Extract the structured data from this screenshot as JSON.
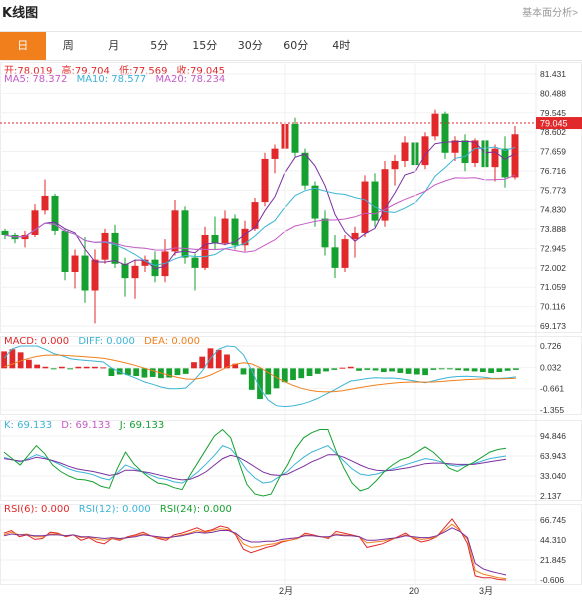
{
  "header": {
    "title": "K线图",
    "analysis_link": "基本面分析>"
  },
  "tabs": [
    {
      "label": "日",
      "active": true
    },
    {
      "label": "周",
      "active": false
    },
    {
      "label": "月",
      "active": false
    },
    {
      "label": "5分",
      "active": false
    },
    {
      "label": "15分",
      "active": false
    },
    {
      "label": "30分",
      "active": false
    },
    {
      "label": "60分",
      "active": false
    },
    {
      "label": "4时",
      "active": false
    }
  ],
  "colors": {
    "up": "#e1282a",
    "down": "#16a02f",
    "accent": "#f07f1c",
    "ma5": "#7b2fa0",
    "ma10": "#3bb3d6",
    "ma20": "#c55ac7"
  },
  "kline_legend": {
    "open": "开:78.019",
    "high": "高:79.704",
    "low": "低:77.569",
    "close": "收:79.045",
    "ma5": "MA5: 78.372",
    "ma10": "MA10: 78.577",
    "ma20": "MA20: 78.234"
  },
  "macd_legend": {
    "macd": "MACD: 0.000",
    "diff": "DIFF: 0.000",
    "dea": "DEA: 0.000"
  },
  "kdj_legend": {
    "k": "K: 69.133",
    "d": "D: 69.133",
    "j": "J: 69.133"
  },
  "rsi_legend": {
    "rsi6": "RSI(6): 0.000",
    "rsi12": "RSI(12): 0.000",
    "rsi24": "RSI(24): 0.000"
  },
  "chart_data": [
    {
      "type": "candlestick",
      "title": "",
      "ylim": [
        69.173,
        81.431
      ],
      "yticks": [
        "81.431",
        "80.488",
        "79.545",
        "78.602",
        "77.659",
        "76.716",
        "75.773",
        "74.830",
        "73.888",
        "72.945",
        "72.002",
        "71.059",
        "70.116",
        "69.173"
      ],
      "current_price_label": "79.045",
      "current_price": 79.045,
      "x_labels": [
        {
          "label": "2月",
          "index": 28
        },
        {
          "label": "20",
          "index": 41
        },
        {
          "label": "3月",
          "index": 48
        }
      ],
      "candles": [
        [
          73.8,
          73.9,
          73.4,
          73.6
        ],
        [
          73.6,
          73.7,
          73.2,
          73.4
        ],
        [
          73.4,
          73.8,
          73.0,
          73.6
        ],
        [
          73.6,
          75.1,
          73.5,
          74.8
        ],
        [
          74.8,
          76.3,
          74.6,
          75.5
        ],
        [
          75.5,
          75.6,
          73.6,
          73.8
        ],
        [
          73.8,
          73.9,
          71.4,
          71.8
        ],
        [
          71.8,
          72.9,
          71.0,
          72.6
        ],
        [
          72.6,
          73.5,
          70.3,
          70.9
        ],
        [
          70.9,
          72.9,
          69.3,
          72.4
        ],
        [
          72.4,
          73.9,
          72.2,
          73.7
        ],
        [
          73.7,
          74.1,
          72.0,
          72.2
        ],
        [
          72.2,
          72.5,
          70.6,
          71.5
        ],
        [
          71.5,
          72.4,
          70.5,
          72.1
        ],
        [
          72.1,
          72.6,
          71.8,
          72.4
        ],
        [
          72.4,
          72.8,
          71.3,
          71.6
        ],
        [
          71.6,
          73.4,
          71.3,
          72.8
        ],
        [
          72.8,
          75.3,
          72.6,
          74.8
        ],
        [
          74.8,
          75.0,
          72.2,
          72.5
        ],
        [
          72.5,
          72.7,
          70.9,
          72.0
        ],
        [
          72.0,
          74.0,
          71.9,
          73.6
        ],
        [
          73.6,
          74.5,
          72.9,
          73.2
        ],
        [
          73.2,
          74.8,
          73.1,
          74.4
        ],
        [
          74.4,
          74.6,
          72.9,
          73.1
        ],
        [
          73.1,
          74.3,
          72.8,
          73.9
        ],
        [
          73.9,
          75.4,
          73.8,
          75.2
        ],
        [
          75.2,
          77.6,
          75.0,
          77.3
        ],
        [
          77.3,
          78.0,
          76.6,
          77.8
        ],
        [
          77.8,
          79.2,
          77.5,
          79.0
        ],
        [
          79.0,
          79.3,
          77.4,
          77.6
        ],
        [
          77.6,
          77.8,
          75.8,
          76.0
        ],
        [
          76.0,
          76.2,
          74.0,
          74.4
        ],
        [
          74.4,
          74.8,
          72.6,
          73.0
        ],
        [
          73.0,
          73.6,
          71.5,
          72.0
        ],
        [
          72.0,
          73.6,
          71.8,
          73.4
        ],
        [
          73.4,
          74.0,
          72.5,
          73.7
        ],
        [
          73.7,
          76.5,
          73.5,
          76.2
        ],
        [
          76.2,
          76.6,
          74.0,
          74.3
        ],
        [
          74.3,
          77.2,
          74.0,
          76.8
        ],
        [
          76.8,
          77.5,
          76.0,
          77.2
        ],
        [
          77.2,
          78.4,
          76.9,
          78.1
        ],
        [
          78.1,
          78.3,
          76.7,
          77.0
        ],
        [
          77.0,
          78.6,
          76.8,
          78.4
        ],
        [
          78.4,
          79.7,
          78.2,
          79.5
        ],
        [
          79.5,
          79.6,
          77.3,
          77.6
        ],
        [
          77.6,
          78.4,
          77.2,
          78.2
        ],
        [
          78.2,
          78.5,
          76.7,
          77.1
        ],
        [
          77.1,
          78.3,
          76.9,
          78.2
        ],
        [
          78.2,
          79.8,
          76.5,
          76.9
        ],
        [
          76.9,
          78.0,
          76.2,
          77.8
        ],
        [
          77.8,
          78.4,
          75.9,
          76.4
        ],
        [
          76.4,
          78.9,
          76.3,
          78.5
        ]
      ]
    },
    {
      "type": "bar",
      "title": "",
      "yticks": [
        "0.726",
        "0.032",
        "-0.661",
        "-1.355"
      ],
      "ylim": [
        -1.355,
        0.726
      ],
      "values": [
        0.55,
        0.62,
        0.52,
        0.28,
        0.12,
        0.05,
        -0.02,
        0.05,
        -0.03,
        0.05,
        0.05,
        0.05,
        0.03,
        -0.25,
        -0.2,
        -0.22,
        -0.25,
        -0.3,
        -0.28,
        -0.32,
        -0.3,
        -0.22,
        -0.18,
        0.2,
        0.38,
        0.65,
        0.6,
        0.45,
        0.15,
        -0.2,
        -0.7,
        -1.0,
        -0.85,
        -0.65,
        -0.45,
        -0.38,
        -0.32,
        -0.25,
        -0.18,
        -0.1,
        -0.05,
        0.02,
        0.05,
        -0.08,
        -0.05,
        -0.07,
        -0.12,
        -0.1,
        -0.15,
        -0.18,
        -0.2,
        -0.22,
        -0.05,
        -0.03,
        -0.02,
        -0.06,
        -0.08,
        -0.1,
        -0.12,
        -0.15,
        -0.12,
        -0.08,
        -0.05
      ]
    },
    {
      "type": "line",
      "title": "",
      "yticks": [
        "94.846",
        "63.943",
        "33.040",
        "2.137"
      ],
      "ylim": [
        2.137,
        94.846
      ],
      "series": [
        {
          "values": [
            62,
            58,
            55,
            60,
            66,
            62,
            56,
            50,
            44,
            40,
            38,
            35,
            30,
            27,
            38,
            50,
            45,
            40,
            35,
            30,
            28,
            24,
            22,
            30,
            40,
            52,
            65,
            80,
            75,
            60,
            42,
            30,
            22,
            24,
            32,
            40,
            52,
            62,
            70,
            75,
            80,
            68,
            56,
            44,
            36,
            34,
            36,
            40,
            44,
            48,
            52,
            56,
            60,
            58,
            55,
            50,
            48,
            50,
            52,
            56,
            60,
            62,
            64
          ]
        },
        {
          "values": [
            60,
            58,
            56,
            58,
            62,
            60,
            57,
            53,
            48,
            44,
            42,
            40,
            37,
            34,
            36,
            42,
            42,
            40,
            38,
            35,
            32,
            29,
            27,
            28,
            33,
            40,
            50,
            60,
            65,
            62,
            55,
            47,
            39,
            35,
            34,
            36,
            42,
            48,
            55,
            60,
            66,
            66,
            62,
            56,
            50,
            45,
            42,
            41,
            42,
            44,
            46,
            49,
            52,
            53,
            53,
            52,
            51,
            51,
            51,
            53,
            55,
            57,
            59
          ]
        },
        {
          "values": [
            70,
            60,
            50,
            65,
            80,
            68,
            50,
            40,
            33,
            28,
            27,
            24,
            17,
            14,
            45,
            70,
            52,
            40,
            30,
            22,
            20,
            15,
            12,
            35,
            55,
            75,
            95,
            110,
            92,
            55,
            20,
            5,
            0,
            5,
            30,
            50,
            75,
            92,
            100,
            105,
            108,
            72,
            45,
            22,
            10,
            14,
            26,
            40,
            50,
            58,
            62,
            70,
            78,
            70,
            58,
            45,
            40,
            48,
            54,
            62,
            70,
            74,
            76
          ]
        }
      ]
    },
    {
      "type": "line",
      "title": "",
      "yticks": [
        "66.745",
        "44.310",
        "21.845",
        "-0.606"
      ],
      "ylim": [
        -0.606,
        66.745
      ],
      "series": [
        {
          "values": [
            52,
            55,
            48,
            50,
            45,
            46,
            53,
            52,
            48,
            50,
            44,
            47,
            42,
            40,
            46,
            44,
            48,
            50,
            53,
            49,
            46,
            44,
            50,
            52,
            55,
            58,
            54,
            56,
            60,
            58,
            50,
            34,
            30,
            33,
            36,
            38,
            42,
            44,
            46,
            52,
            50,
            48,
            46,
            54,
            52,
            50,
            48,
            36,
            38,
            40,
            44,
            48,
            52,
            46,
            42,
            44,
            48,
            58,
            68,
            56,
            40,
            4,
            2,
            2,
            0,
            -1
          ]
        },
        {
          "values": [
            50,
            53,
            50,
            51,
            48,
            48,
            51,
            51,
            49,
            50,
            47,
            48,
            45,
            44,
            46,
            45,
            47,
            49,
            51,
            49,
            47,
            46,
            48,
            50,
            52,
            55,
            53,
            55,
            57,
            56,
            51,
            40,
            36,
            37,
            39,
            40,
            43,
            44,
            46,
            50,
            49,
            48,
            47,
            51,
            50,
            49,
            48,
            41,
            42,
            43,
            45,
            47,
            50,
            47,
            45,
            46,
            48,
            55,
            62,
            55,
            45,
            10,
            6,
            4,
            2,
            1
          ]
        },
        {
          "values": [
            49,
            51,
            50,
            50,
            49,
            49,
            50,
            50,
            49,
            50,
            48,
            48,
            47,
            46,
            47,
            46,
            47,
            48,
            50,
            49,
            48,
            47,
            48,
            49,
            51,
            53,
            52,
            53,
            55,
            55,
            52,
            45,
            42,
            42,
            43,
            43,
            45,
            46,
            47,
            49,
            49,
            48,
            48,
            50,
            49,
            49,
            48,
            44,
            44,
            45,
            46,
            47,
            49,
            48,
            47,
            47,
            49,
            53,
            58,
            54,
            47,
            18,
            12,
            9,
            7,
            5
          ]
        }
      ]
    }
  ]
}
